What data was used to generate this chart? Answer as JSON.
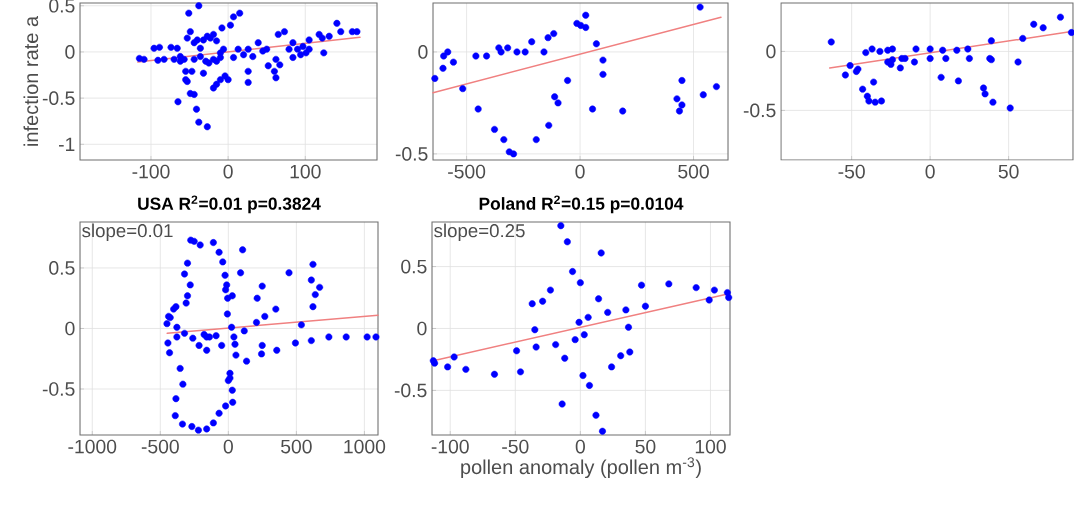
{
  "chart_data": [
    {
      "type": "scatter",
      "ylabel": "infection rate a",
      "xlim": [
        -192,
        193
      ],
      "ylim": [
        -1.17,
        0.53
      ],
      "xticks": [
        -100,
        0,
        100
      ],
      "yticks": [
        -1,
        -0.5,
        0,
        0.5
      ],
      "grid": true,
      "series": [
        {
          "type": "scatter",
          "color": "#0000ff",
          "marker": "circle",
          "x": [
            -115,
            -109,
            -96,
            -89,
            -91,
            -83,
            -74,
            -70,
            -66,
            -62,
            -57,
            -53,
            -49,
            -55,
            -55,
            -53,
            -47,
            -44,
            -40,
            -36,
            -32,
            -27,
            -23,
            -19,
            -15,
            -10,
            -6,
            -36,
            -29,
            -25,
            -19,
            -15,
            -10,
            -8,
            3,
            7,
            15,
            -38,
            -65,
            -49,
            -44,
            -41,
            -38,
            -27,
            -32,
            -19,
            -15,
            -10,
            -4,
            0,
            7,
            13,
            20,
            26,
            26,
            26,
            32,
            39,
            45,
            50,
            52,
            60,
            62,
            62,
            67,
            65,
            73,
            79,
            84,
            84,
            90,
            94,
            97,
            101,
            105,
            105,
            118,
            122,
            124,
            131,
            141,
            146,
            161,
            167,
            -51,
            -62,
            -44
          ],
          "values": [
            -0.07,
            -0.08,
            0.04,
            0.05,
            -0.09,
            -0.08,
            0.05,
            -0.08,
            0.04,
            -0.1,
            -0.08,
            0.15,
            0.22,
            -0.21,
            -0.3,
            -0.32,
            -0.21,
            0.1,
            0.13,
            0.04,
            0.13,
            0.17,
            0.15,
            0.19,
            0.12,
            -0.01,
            0.03,
            -0.05,
            -0.1,
            -0.12,
            -0.08,
            -0.1,
            -0.06,
            0.26,
            0.29,
            0.38,
            0.42,
            0.5,
            -0.54,
            -0.45,
            -0.46,
            -0.62,
            -0.76,
            -0.81,
            -0.23,
            -0.39,
            -0.35,
            -0.3,
            -0.26,
            -0.3,
            -0.06,
            0.03,
            -0.03,
            0.03,
            -0.21,
            -0.33,
            -0.05,
            0.1,
            0.01,
            0.03,
            -0.15,
            -0.21,
            -0.28,
            -0.08,
            -0.14,
            0.19,
            0.22,
            0.03,
            0.1,
            -0.06,
            0.03,
            -0.03,
            0.06,
            -0.01,
            0.03,
            0.13,
            0.19,
            0.15,
            -0.01,
            0.17,
            0.31,
            0.22,
            0.22,
            0.22,
            0.42,
            -0.05,
            -0.08
          ]
        },
        {
          "type": "line",
          "color": "#f08080",
          "marker": "none",
          "x": [
            -117,
            171
          ],
          "values": [
            -0.11,
            0.16
          ]
        }
      ]
    },
    {
      "type": "scatter",
      "xlim": [
        -648,
        652
      ],
      "ylim": [
        -0.53,
        0.24
      ],
      "xticks": [
        -500,
        0,
        500
      ],
      "yticks": [
        -0.5,
        0
      ],
      "grid": true,
      "series": [
        {
          "type": "scatter",
          "color": "#0000ff",
          "marker": "circle",
          "x": [
            -640,
            -604,
            -601,
            -583,
            -558,
            -517,
            -459,
            -449,
            -412,
            -377,
            -358,
            -348,
            -319,
            -336,
            -312,
            -293,
            -278,
            -242,
            -213,
            -193,
            -159,
            -141,
            -116,
            -138,
            -112,
            -97,
            -55,
            -14,
            3,
            25,
            25,
            55,
            72,
            101,
            101,
            188,
            427,
            438,
            449,
            449,
            543,
            601,
            529
          ],
          "values": [
            -0.13,
            -0.08,
            -0.02,
            0.0,
            -0.05,
            -0.18,
            -0.02,
            -0.28,
            -0.02,
            -0.38,
            0.02,
            0.0,
            0.02,
            -0.43,
            -0.49,
            -0.5,
            0.0,
            0.0,
            0.05,
            -0.43,
            0.0,
            0.07,
            0.09,
            -0.36,
            -0.22,
            -0.25,
            -0.14,
            0.14,
            0.13,
            0.18,
            0.12,
            -0.28,
            0.04,
            -0.04,
            -0.11,
            -0.29,
            -0.23,
            -0.29,
            -0.26,
            -0.14,
            -0.21,
            -0.17,
            0.22
          ]
        },
        {
          "type": "line",
          "color": "#f08080",
          "marker": "none",
          "x": [
            -648,
            621
          ],
          "values": [
            -0.2,
            0.17
          ]
        }
      ]
    },
    {
      "type": "scatter",
      "xlim": [
        -95,
        91
      ],
      "ylim": [
        -0.92,
        0.41
      ],
      "xticks": [
        -50,
        0,
        50
      ],
      "yticks": [
        -0.5,
        0
      ],
      "grid": true,
      "series": [
        {
          "type": "scatter",
          "color": "#0000ff",
          "marker": "circle",
          "x": [
            -63,
            -54,
            -51,
            -47,
            -46,
            -43,
            -41,
            -40,
            -39,
            -36,
            -37,
            -35,
            -32,
            -31,
            -27,
            -27,
            -25,
            -24,
            -24,
            -19,
            -18,
            -16,
            -10,
            -9,
            0,
            0,
            7,
            8,
            10,
            17,
            18,
            24,
            25,
            34,
            35,
            38,
            39,
            39,
            40,
            51,
            56,
            59,
            66,
            72,
            83,
            90
          ],
          "values": [
            0.08,
            -0.2,
            -0.12,
            -0.17,
            -0.15,
            -0.32,
            -0.01,
            -0.38,
            -0.42,
            -0.26,
            0.02,
            -0.43,
            0.0,
            -0.42,
            0.01,
            -0.09,
            -0.11,
            0.02,
            -0.07,
            -0.14,
            -0.06,
            -0.06,
            -0.09,
            0.02,
            0.02,
            -0.06,
            -0.22,
            0.01,
            -0.06,
            0.01,
            -0.25,
            0.02,
            -0.06,
            -0.31,
            -0.36,
            -0.06,
            0.09,
            -0.07,
            -0.43,
            -0.48,
            -0.09,
            0.11,
            0.23,
            0.2,
            0.29,
            0.16
          ]
        },
        {
          "type": "line",
          "color": "#f08080",
          "marker": "none",
          "x": [
            -64,
            91
          ],
          "values": [
            -0.14,
            0.17
          ]
        }
      ]
    },
    {
      "type": "scatter",
      "title": "**USA  R$^{2}$=0.01  p=0.3824**",
      "annotations": [
        "slope=0.01"
      ],
      "xlim": [
        -1090,
        1100
      ],
      "ylim": [
        -0.88,
        0.88
      ],
      "xticks": [
        -1000,
        -500,
        0,
        500,
        1000
      ],
      "yticks": [
        -0.5,
        0,
        0.5
      ],
      "grid": true,
      "series": [
        {
          "type": "scatter",
          "color": "#0000ff",
          "marker": "circle",
          "x": [
            -439,
            -451,
            -427,
            -402,
            -385,
            -444,
            -432,
            -378,
            -378,
            -354,
            -334,
            -385,
            -390,
            -337,
            -268,
            -220,
            -159,
            -110,
            -68,
            -20,
            32,
            29,
            12,
            0,
            12,
            -322,
            -310,
            -300,
            -280,
            -322,
            -300,
            -276,
            -251,
            -207,
            -110,
            -68,
            -41,
            -24,
            -12,
            -20,
            -5,
            29,
            -7,
            -261,
            -215,
            -178,
            -159,
            -139,
            -90,
            -159,
            -49,
            24,
            41,
            49,
            56,
            117,
            134,
            90,
            105,
            207,
            212,
            249,
            268,
            249,
            244,
            349,
            356,
            446,
            493,
            537,
            610,
            622,
            610,
            622,
            639,
            671,
            739,
            866,
            1020,
            1085
          ],
          "values": [
            0.1,
            0.04,
            0.09,
            0.16,
            0.18,
            -0.12,
            -0.2,
            0.01,
            -0.07,
            -0.33,
            -0.46,
            -0.58,
            -0.72,
            -0.79,
            -0.81,
            -0.84,
            -0.83,
            -0.78,
            -0.7,
            -0.64,
            -0.61,
            -0.51,
            -0.41,
            -0.43,
            -0.37,
            -0.04,
            0.21,
            0.27,
            0.36,
            0.45,
            0.54,
            0.73,
            0.72,
            0.69,
            0.71,
            0.63,
            0.55,
            0.44,
            0.36,
            0.32,
            0.25,
            0.27,
            0.12,
            -0.08,
            -0.14,
            -0.05,
            -0.07,
            -0.07,
            -0.06,
            -0.18,
            -0.14,
            0.01,
            -0.07,
            -0.13,
            -0.22,
            -0.02,
            -0.27,
            0.46,
            0.65,
            0.05,
            0.25,
            0.35,
            0.1,
            -0.14,
            -0.21,
            0.16,
            -0.18,
            0.46,
            -0.12,
            0.03,
            -0.1,
            0.53,
            0.4,
            0.18,
            0.28,
            0.34,
            -0.07,
            -0.07,
            -0.07,
            -0.07
          ]
        },
        {
          "type": "line",
          "color": "#f08080",
          "marker": "none",
          "x": [
            -449,
            1100
          ],
          "values": [
            -0.04,
            0.11
          ]
        }
      ]
    },
    {
      "type": "scatter",
      "title": "**Poland  R$^{2}$=0.15  p=0.0104**",
      "annotations": [
        "slope=0.25"
      ],
      "xlabel": "pollen anomaly (pollen m$^{-3}$)",
      "xlim": [
        -114,
        115
      ],
      "ylim": [
        -0.86,
        0.86
      ],
      "xticks": [
        -100,
        -50,
        0,
        50,
        100
      ],
      "yticks": [
        -0.5,
        0,
        0.5
      ],
      "grid": true,
      "series": [
        {
          "type": "scatter",
          "color": "#0000ff",
          "marker": "circle",
          "x": [
            -113,
            -112,
            -102,
            -97,
            -88,
            -66,
            -49,
            -46,
            -37,
            -35,
            -34,
            -29,
            -23,
            -19,
            -15,
            -14,
            -12,
            -10,
            -6,
            -4,
            -1,
            0,
            2,
            3,
            6,
            7,
            12,
            14,
            16,
            17,
            21,
            24,
            31,
            35,
            37,
            38,
            47,
            50,
            68,
            89,
            99,
            103,
            113,
            114
          ],
          "values": [
            -0.26,
            -0.28,
            -0.31,
            -0.23,
            -0.33,
            -0.37,
            -0.18,
            -0.35,
            0.2,
            -0.01,
            -0.15,
            0.22,
            0.31,
            -0.13,
            0.83,
            -0.61,
            -0.24,
            0.7,
            0.46,
            -0.09,
            0.05,
            0.37,
            -0.38,
            -0.05,
            0.09,
            -0.46,
            -0.7,
            0.24,
            0.61,
            -0.83,
            0.13,
            -0.31,
            -0.22,
            0.15,
            0.01,
            -0.19,
            0.35,
            0.18,
            0.36,
            0.33,
            0.23,
            0.31,
            0.29,
            0.25
          ]
        },
        {
          "type": "line",
          "color": "#f08080",
          "marker": "none",
          "x": [
            -113,
            114
          ],
          "values": [
            -0.26,
            0.28
          ]
        }
      ]
    }
  ]
}
